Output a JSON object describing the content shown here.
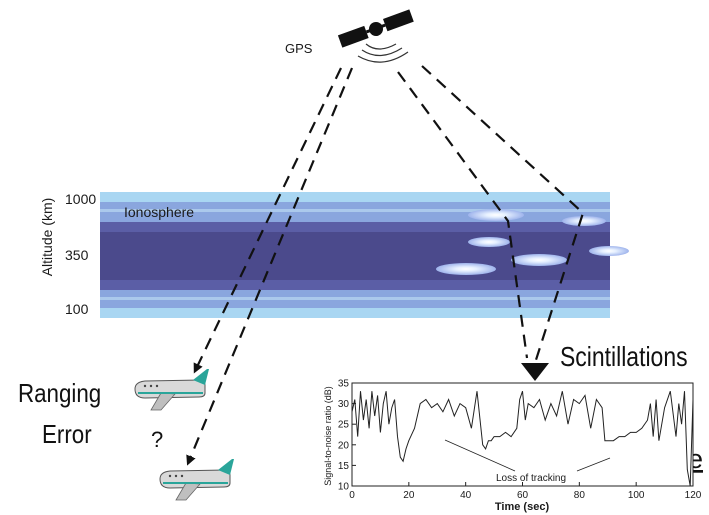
{
  "satellite": {
    "label": "GPS",
    "icon": "satellite-icon"
  },
  "ionosphere": {
    "label": "Ionosphere",
    "axis_label": "Altitude (km)",
    "ticks": [
      "1000",
      "350",
      "100"
    ],
    "colors": {
      "outer": "#a9d6f2",
      "mid": "#8aa6de",
      "inner": "#5b5ea6",
      "core": "#4b4a8c"
    }
  },
  "effects": {
    "ranging_error_line1": "Ranging",
    "ranging_error_line2": "Error",
    "question": "?",
    "scintillations": "Scintillations",
    "fragment": "se"
  },
  "chart_data": {
    "type": "line",
    "xlabel": "Time (sec)",
    "ylabel": "Signal-to-noise ratio (dB)",
    "xlim": [
      0,
      120
    ],
    "ylim": [
      10,
      35
    ],
    "xticks": [
      "0",
      "20",
      "40",
      "60",
      "80",
      "100",
      "120"
    ],
    "yticks": [
      "10",
      "15",
      "20",
      "25",
      "30",
      "35"
    ],
    "annotation": "Loss of tracking",
    "series": [
      {
        "x": [
          0,
          1,
          2,
          3,
          4,
          5,
          6,
          7,
          8,
          9,
          10,
          11,
          12,
          13,
          14,
          15,
          16,
          17,
          18,
          19,
          20,
          22,
          24,
          26,
          28,
          30,
          32,
          34,
          36,
          38,
          40,
          42,
          44,
          46,
          47,
          48,
          49,
          50,
          52,
          54,
          56,
          58,
          59,
          60,
          61,
          62,
          64,
          66,
          68,
          70,
          72,
          74,
          76,
          78,
          80,
          82,
          84,
          86,
          88,
          89,
          90,
          92,
          94,
          96,
          98,
          100,
          102,
          104,
          105,
          106,
          107,
          108,
          110,
          112,
          114,
          115,
          116,
          117,
          118,
          119,
          120
        ],
        "values": [
          28,
          31,
          22,
          33,
          26,
          31,
          24,
          33,
          27,
          32,
          23,
          30,
          33,
          25,
          29,
          31,
          22,
          17,
          16,
          19,
          21,
          24,
          30,
          31,
          29,
          30,
          28,
          31,
          27,
          30,
          29,
          24,
          33,
          20,
          19,
          21,
          21,
          22,
          22,
          23,
          22,
          24,
          31,
          33,
          26,
          30,
          29,
          31,
          26,
          30,
          27,
          33,
          25,
          31,
          30,
          32,
          24,
          31,
          29,
          21,
          21,
          21,
          22,
          22,
          23,
          23,
          24,
          26,
          30,
          22,
          31,
          21,
          29,
          33,
          22,
          30,
          25,
          33,
          14,
          10,
          31
        ]
      }
    ]
  }
}
